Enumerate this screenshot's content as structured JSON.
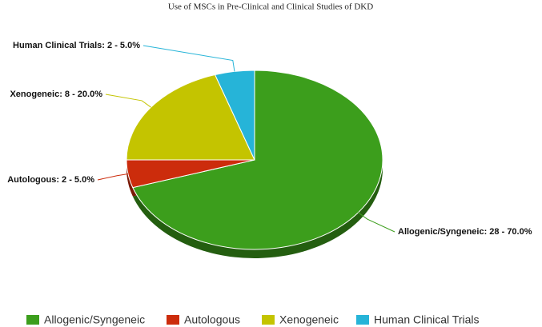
{
  "chart_data": {
    "type": "pie",
    "title": "Use of MSCs in Pre-Clinical and Clinical Studies of DKD",
    "categories": [
      "Allogenic/Syngeneic",
      "Autologous",
      "Xenogeneic",
      "Human Clinical Trials"
    ],
    "values": [
      28,
      2,
      8,
      2
    ],
    "value_labels": [
      "Allogenic/Syngeneic: 28 - 70.0%",
      "Autologous: 2 - 5.0%",
      "Xenogeneic: 8 - 20.0%",
      "Human Clinical Trials: 2 - 5.0%"
    ],
    "colors": [
      "#3c9e1c",
      "#cc2c0c",
      "#c4c400",
      "#26b4d8"
    ],
    "legend": "bottom"
  }
}
